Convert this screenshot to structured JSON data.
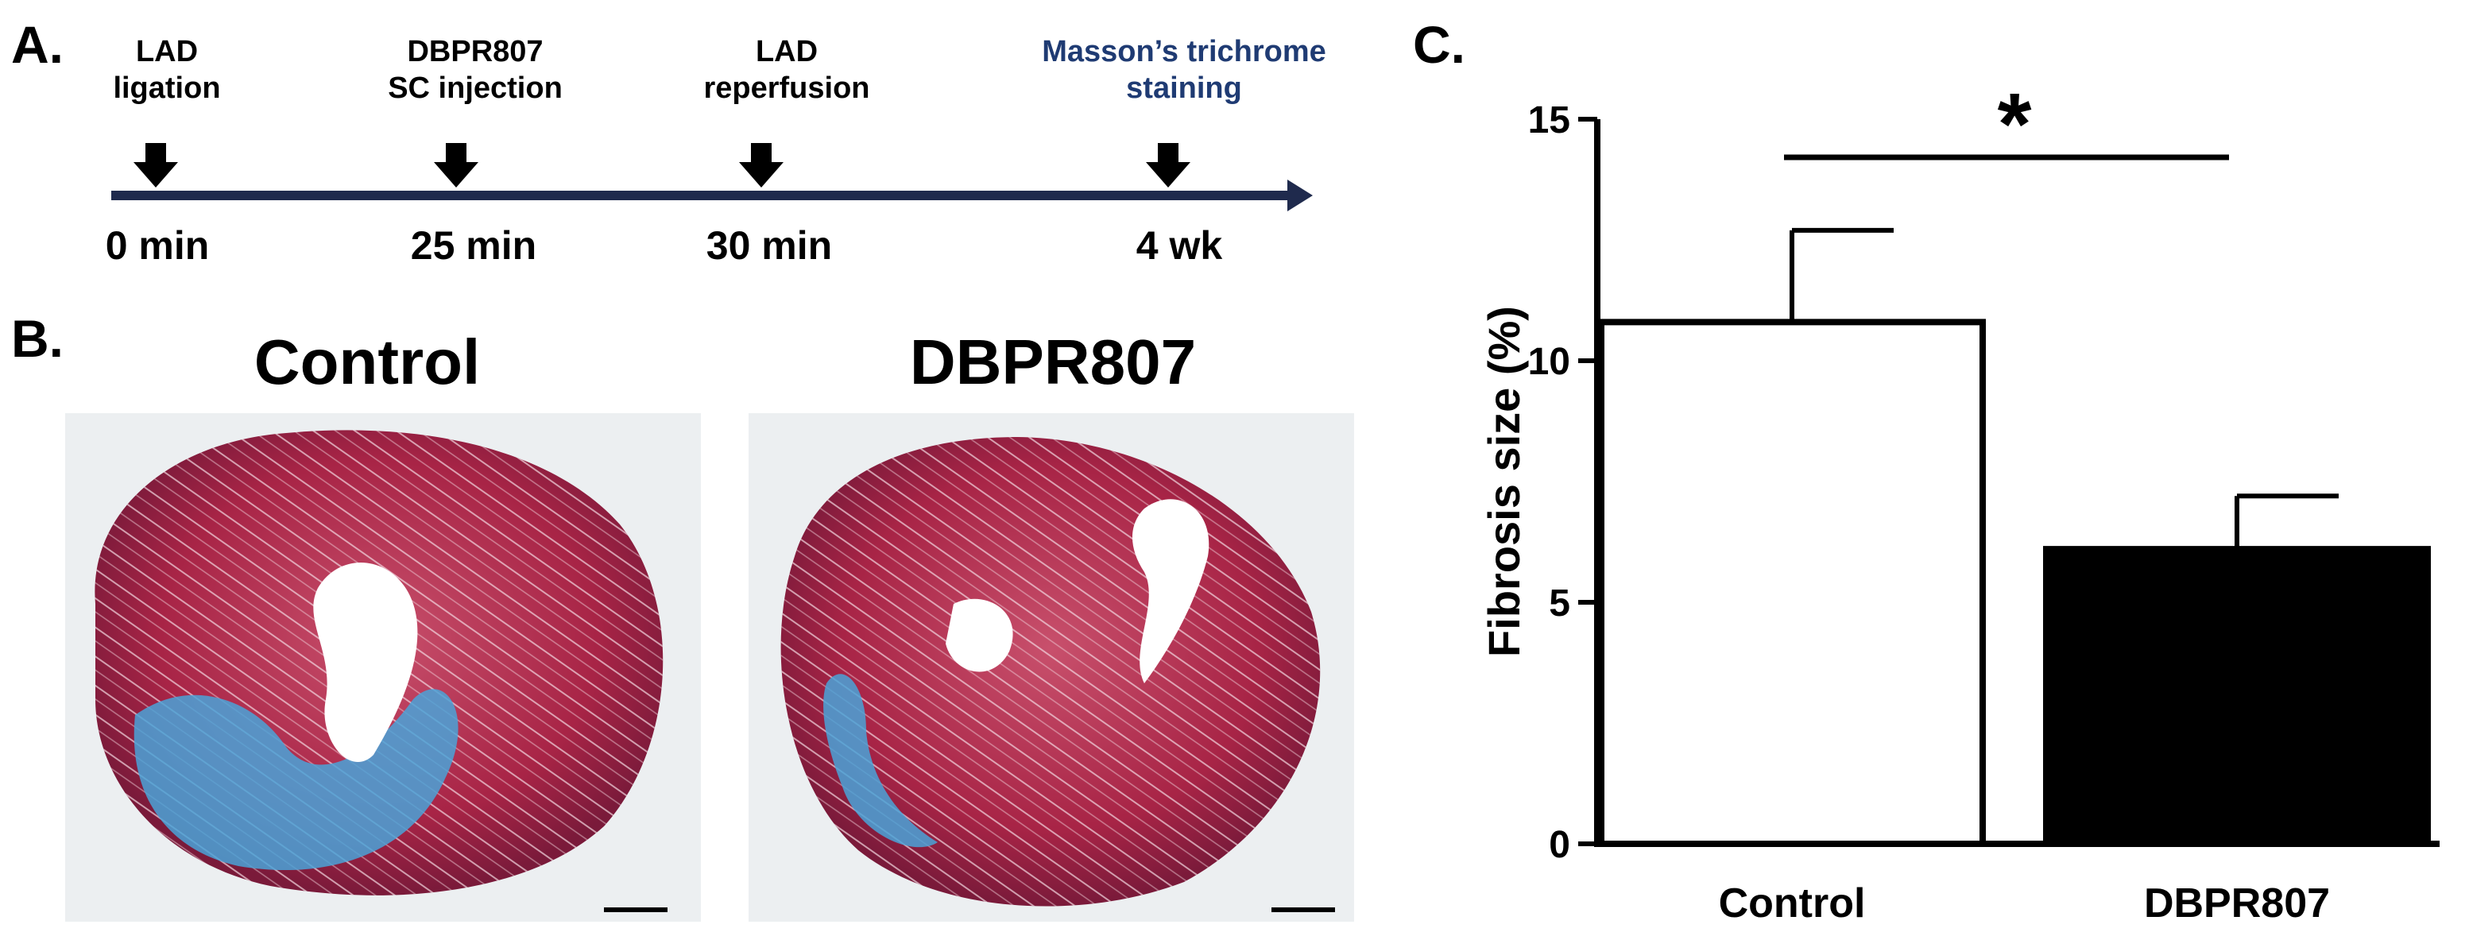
{
  "panel_labels": {
    "a": "A.",
    "b": "B.",
    "c": "C."
  },
  "timeline": {
    "events": [
      {
        "label": "LAD\nligation",
        "time": "0 min"
      },
      {
        "label": "DBPR807\nSC injection",
        "time": "25 min"
      },
      {
        "label": "LAD\nreperfusion",
        "time": "30 min"
      },
      {
        "label": "Masson’s trichrome\nstaining",
        "time": "4 wk"
      }
    ],
    "line_color": "#1f2a4d",
    "last_label_color": "#1f3b73"
  },
  "images": {
    "control_title": "Control",
    "treated_title": "DBPR807",
    "tissue_red": "#b3264a",
    "fibrosis_blue": "#4aa3d8"
  },
  "chart_data": {
    "type": "bar",
    "categories": [
      "Control",
      "DBPR807"
    ],
    "values": [
      10.8,
      6.1
    ],
    "errors": [
      1.9,
      1.1
    ],
    "bar_colors": [
      "#ffffff",
      "#000000"
    ],
    "ylabel": "Fibrosis size (%)",
    "ylim": [
      0,
      15
    ],
    "yticks": [
      0,
      5,
      10,
      15
    ],
    "significance": "*",
    "grid": false
  }
}
